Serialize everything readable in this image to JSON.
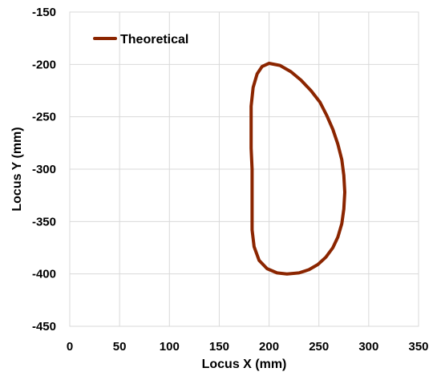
{
  "chart_data": {
    "type": "line",
    "title": "",
    "xlabel": "Locus X (mm)",
    "ylabel": "Locus Y (mm)",
    "xlim": [
      0,
      350
    ],
    "ylim": [
      -450,
      -150
    ],
    "xticks": [
      0,
      50,
      100,
      150,
      200,
      250,
      300,
      350
    ],
    "yticks": [
      -150,
      -200,
      -250,
      -300,
      -350,
      -400,
      -450
    ],
    "grid": "major",
    "legend": {
      "position": "top-left",
      "entries": [
        "Theoretical"
      ]
    },
    "series": [
      {
        "name": "Theoretical",
        "color": "#8B2500",
        "x": [
          200,
          211,
          222,
          232,
          242,
          251,
          258,
          264,
          269,
          273,
          275,
          276,
          275,
          273,
          269,
          264,
          257,
          249,
          240,
          230,
          218,
          208,
          198,
          190,
          185,
          183,
          183,
          183,
          183,
          182,
          182,
          182,
          184,
          188,
          193,
          200
        ],
        "y": [
          -199,
          -201,
          -207,
          -215,
          -225,
          -236,
          -249,
          -262,
          -276,
          -291,
          -306,
          -322,
          -338,
          -352,
          -365,
          -375,
          -384,
          -391,
          -396,
          -399,
          -400,
          -399,
          -395,
          -387,
          -374,
          -358,
          -340,
          -320,
          -300,
          -280,
          -260,
          -240,
          -222,
          -209,
          -202,
          -199
        ]
      }
    ]
  }
}
